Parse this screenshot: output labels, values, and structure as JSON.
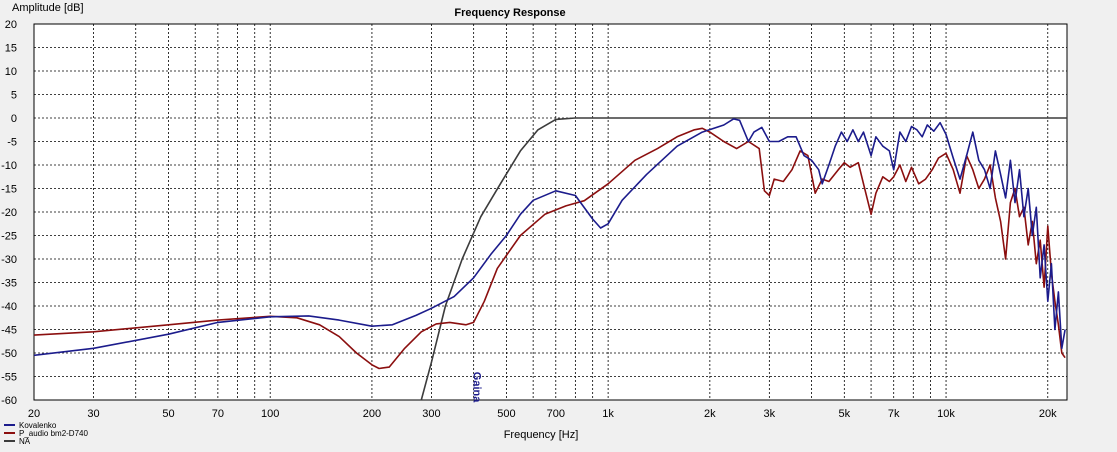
{
  "chart_data": {
    "type": "line",
    "title": "Frequency Response",
    "xlabel": "Frequency [Hz]",
    "ylabel": "Amplitude [dB]",
    "x_scale": "log",
    "xlim": [
      20,
      22800
    ],
    "ylim": [
      -60,
      20
    ],
    "grid": true,
    "x_ticks": [
      20,
      30,
      50,
      70,
      100,
      200,
      300,
      500,
      700,
      1000,
      2000,
      3000,
      5000,
      7000,
      10000,
      20000
    ],
    "x_tick_labels": [
      "20",
      "30",
      "50",
      "70",
      "100",
      "200",
      "300",
      "500",
      "700",
      "1k",
      "2k",
      "3k",
      "5k",
      "7k",
      "10k",
      "20k"
    ],
    "y_ticks": [
      20,
      15,
      10,
      5,
      0,
      -5,
      -10,
      -15,
      -20,
      -25,
      -30,
      -35,
      -40,
      -45,
      -50,
      -55,
      -60
    ],
    "annotation": {
      "text": "Gaina",
      "x": 400,
      "y": -54
    },
    "legend": {
      "placement": "bottom-left"
    },
    "series": [
      {
        "name": "Kovalenko",
        "color": "#1c1c8c",
        "points": [
          [
            20,
            -50.5
          ],
          [
            30,
            -49
          ],
          [
            50,
            -46
          ],
          [
            70,
            -43.5
          ],
          [
            100,
            -42.3
          ],
          [
            130,
            -42.1
          ],
          [
            160,
            -43
          ],
          [
            200,
            -44.3
          ],
          [
            230,
            -44
          ],
          [
            270,
            -42
          ],
          [
            300,
            -40.5
          ],
          [
            350,
            -38
          ],
          [
            400,
            -34
          ],
          [
            450,
            -29
          ],
          [
            500,
            -25
          ],
          [
            550,
            -20.5
          ],
          [
            600,
            -17.5
          ],
          [
            700,
            -15.5
          ],
          [
            800,
            -16.5
          ],
          [
            900,
            -21.5
          ],
          [
            950,
            -23.4
          ],
          [
            1000,
            -22.5
          ],
          [
            1100,
            -17.5
          ],
          [
            1300,
            -12
          ],
          [
            1600,
            -6
          ],
          [
            1900,
            -3
          ],
          [
            2200,
            -1.5
          ],
          [
            2350,
            -0.2
          ],
          [
            2450,
            -0.5
          ],
          [
            2600,
            -5
          ],
          [
            2700,
            -3
          ],
          [
            2850,
            -2
          ],
          [
            3000,
            -5
          ],
          [
            3200,
            -5
          ],
          [
            3400,
            -4
          ],
          [
            3600,
            -4
          ],
          [
            3800,
            -8
          ],
          [
            4000,
            -9
          ],
          [
            4200,
            -11
          ],
          [
            4300,
            -14
          ],
          [
            4500,
            -10
          ],
          [
            4700,
            -6
          ],
          [
            4900,
            -3
          ],
          [
            5100,
            -5
          ],
          [
            5300,
            -2.5
          ],
          [
            5500,
            -5
          ],
          [
            5700,
            -3
          ],
          [
            6000,
            -8
          ],
          [
            6200,
            -4
          ],
          [
            6500,
            -6
          ],
          [
            6800,
            -7
          ],
          [
            7000,
            -11
          ],
          [
            7300,
            -3
          ],
          [
            7600,
            -5
          ],
          [
            7900,
            -1.8
          ],
          [
            8200,
            -2.5
          ],
          [
            8500,
            -4
          ],
          [
            8800,
            -1.5
          ],
          [
            9200,
            -2.8
          ],
          [
            9600,
            -1
          ],
          [
            10000,
            -3.5
          ],
          [
            10500,
            -8.5
          ],
          [
            11000,
            -13
          ],
          [
            11500,
            -8
          ],
          [
            12000,
            -3
          ],
          [
            12500,
            -9
          ],
          [
            13000,
            -11
          ],
          [
            13500,
            -15
          ],
          [
            14000,
            -7
          ],
          [
            14500,
            -12
          ],
          [
            15000,
            -17
          ],
          [
            15500,
            -9
          ],
          [
            16000,
            -18
          ],
          [
            16500,
            -11
          ],
          [
            17000,
            -21
          ],
          [
            17500,
            -15
          ],
          [
            18000,
            -25
          ],
          [
            18500,
            -19
          ],
          [
            19000,
            -34
          ],
          [
            19500,
            -27
          ],
          [
            20000,
            -39
          ],
          [
            20500,
            -31
          ],
          [
            21000,
            -45
          ],
          [
            21500,
            -37
          ],
          [
            22000,
            -49
          ],
          [
            22500,
            -45
          ]
        ]
      },
      {
        "name": "P_audio bm2-D740",
        "color": "#8b0f0f",
        "points": [
          [
            20,
            -46.2
          ],
          [
            30,
            -45.5
          ],
          [
            50,
            -44
          ],
          [
            70,
            -43
          ],
          [
            100,
            -42.2
          ],
          [
            120,
            -42.5
          ],
          [
            140,
            -44
          ],
          [
            160,
            -46.5
          ],
          [
            180,
            -50
          ],
          [
            200,
            -52.5
          ],
          [
            210,
            -53.3
          ],
          [
            225,
            -53
          ],
          [
            250,
            -49
          ],
          [
            280,
            -45.5
          ],
          [
            310,
            -43.8
          ],
          [
            340,
            -43.5
          ],
          [
            380,
            -44
          ],
          [
            400,
            -43.5
          ],
          [
            430,
            -39
          ],
          [
            470,
            -32
          ],
          [
            550,
            -25
          ],
          [
            650,
            -20.5
          ],
          [
            750,
            -18.7
          ],
          [
            850,
            -17.6
          ],
          [
            1000,
            -14
          ],
          [
            1200,
            -9
          ],
          [
            1400,
            -6.5
          ],
          [
            1600,
            -4
          ],
          [
            1800,
            -2.5
          ],
          [
            1900,
            -2.2
          ],
          [
            2000,
            -3
          ],
          [
            2200,
            -5
          ],
          [
            2400,
            -6.5
          ],
          [
            2600,
            -5
          ],
          [
            2800,
            -6.5
          ],
          [
            2900,
            -15.5
          ],
          [
            3000,
            -16.5
          ],
          [
            3100,
            -13
          ],
          [
            3300,
            -13.5
          ],
          [
            3500,
            -11
          ],
          [
            3700,
            -7
          ],
          [
            3900,
            -8
          ],
          [
            4100,
            -16
          ],
          [
            4300,
            -13
          ],
          [
            4500,
            -13.5
          ],
          [
            4800,
            -11
          ],
          [
            5000,
            -9.5
          ],
          [
            5200,
            -10.5
          ],
          [
            5500,
            -9.5
          ],
          [
            5700,
            -14
          ],
          [
            6000,
            -20.5
          ],
          [
            6200,
            -16
          ],
          [
            6500,
            -12.5
          ],
          [
            6800,
            -13.5
          ],
          [
            7000,
            -12.5
          ],
          [
            7300,
            -10
          ],
          [
            7600,
            -13.5
          ],
          [
            7900,
            -10.5
          ],
          [
            8300,
            -14
          ],
          [
            8700,
            -13
          ],
          [
            9100,
            -11
          ],
          [
            9500,
            -8.5
          ],
          [
            10000,
            -7.5
          ],
          [
            10500,
            -11
          ],
          [
            11000,
            -16
          ],
          [
            11500,
            -8
          ],
          [
            12000,
            -11
          ],
          [
            12500,
            -15
          ],
          [
            13000,
            -13
          ],
          [
            13500,
            -10
          ],
          [
            14000,
            -17
          ],
          [
            14500,
            -22
          ],
          [
            15000,
            -30
          ],
          [
            15500,
            -18
          ],
          [
            16000,
            -15
          ],
          [
            16500,
            -21
          ],
          [
            17000,
            -19
          ],
          [
            17500,
            -27
          ],
          [
            18000,
            -22
          ],
          [
            18500,
            -31
          ],
          [
            19000,
            -26
          ],
          [
            19500,
            -36
          ],
          [
            20000,
            -23
          ],
          [
            20500,
            -33
          ],
          [
            21000,
            -39
          ],
          [
            21500,
            -44
          ],
          [
            22000,
            -50
          ],
          [
            22500,
            -51
          ]
        ]
      },
      {
        "name": "NA",
        "color": "#3c3c3c",
        "points": [
          [
            280,
            -60
          ],
          [
            300,
            -52
          ],
          [
            330,
            -40
          ],
          [
            370,
            -30
          ],
          [
            420,
            -21
          ],
          [
            480,
            -14
          ],
          [
            550,
            -7
          ],
          [
            620,
            -2.5
          ],
          [
            700,
            -0.3
          ],
          [
            800,
            0
          ],
          [
            1000,
            0
          ],
          [
            22800,
            0
          ]
        ]
      }
    ]
  }
}
